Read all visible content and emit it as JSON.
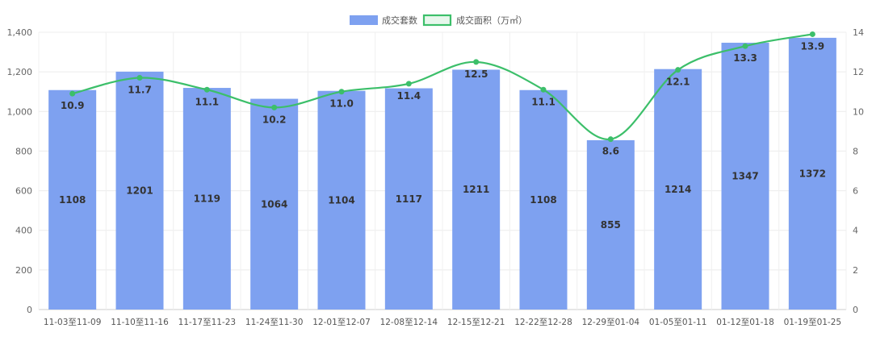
{
  "chart_data": {
    "type": "bar",
    "categories": [
      "11-03至11-09",
      "11-10至11-16",
      "11-17至11-23",
      "11-24至11-30",
      "12-01至12-07",
      "12-08至12-14",
      "12-15至12-21",
      "12-22至12-28",
      "12-29至01-04",
      "01-05至01-11",
      "01-12至01-18",
      "01-19至01-25"
    ],
    "series": [
      {
        "name": "成交套数",
        "type": "bar",
        "axis": "left",
        "color": "#7ea1f0",
        "values": [
          1108,
          1201,
          1119,
          1064,
          1104,
          1117,
          1211,
          1108,
          855,
          1214,
          1347,
          1372
        ],
        "labels": [
          "1108",
          "1201",
          "1119",
          "1064",
          "1104",
          "1117",
          "1211",
          "1108",
          "855",
          "1214",
          "1347",
          "1372"
        ]
      },
      {
        "name": "成交面积（万㎡）",
        "type": "line",
        "axis": "right",
        "color": "#3cbf6a",
        "values": [
          10.9,
          11.7,
          11.1,
          10.2,
          11.0,
          11.4,
          12.5,
          11.1,
          8.6,
          12.1,
          13.3,
          13.9
        ],
        "labels": [
          "10.9",
          "11.7",
          "11.1",
          "10.2",
          "11.0",
          "11.4",
          "12.5",
          "11.1",
          "8.6",
          "12.1",
          "13.3",
          "13.9"
        ]
      }
    ],
    "y_left": {
      "min": 0,
      "max": 1400,
      "ticks": [
        "0",
        "200",
        "400",
        "600",
        "800",
        "1,000",
        "1,200",
        "1,400"
      ]
    },
    "y_right": {
      "min": 0,
      "max": 14,
      "ticks": [
        "0",
        "2",
        "4",
        "6",
        "8",
        "10",
        "12",
        "14"
      ]
    },
    "legend": {
      "position": "top-center",
      "items": [
        "成交套数",
        "成交面积（万㎡）"
      ]
    },
    "grid": true,
    "smooth_line": true
  }
}
